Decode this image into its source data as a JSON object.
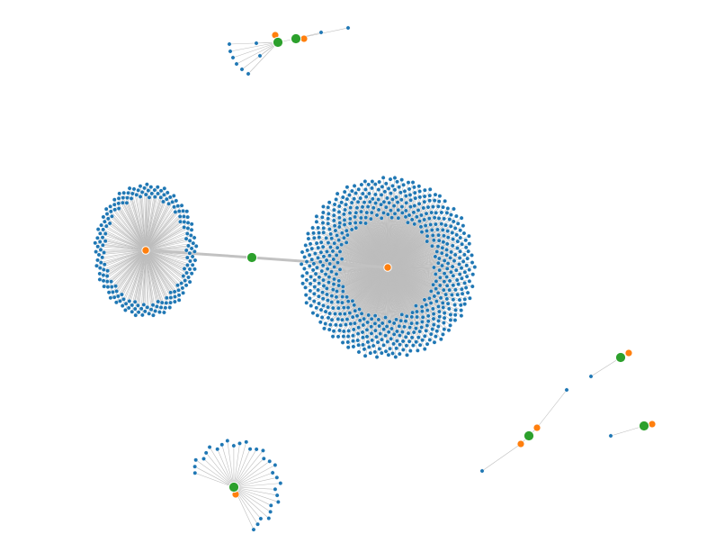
{
  "chart_data": {
    "type": "network",
    "title": "",
    "colors": {
      "leaf": "#1f77b4",
      "hub": "#ff7f0e",
      "bridge": "#2ca02c",
      "edge": "#bdbdbd"
    },
    "components": [
      {
        "id": "large-star",
        "hub_count": 1,
        "leaf_count": 620,
        "bridge_count": 0
      },
      {
        "id": "medium-star",
        "hub_count": 1,
        "leaf_count": 190,
        "bridge_count": 0
      },
      {
        "id": "bridge-link",
        "connects": [
          "large-star",
          "medium-star"
        ],
        "bridge_count": 1
      },
      {
        "id": "top-group",
        "hub_count": 2,
        "leaf_count": 10,
        "bridge_count": 2
      },
      {
        "id": "bottom-fan",
        "hub_count": 1,
        "leaf_count": 30,
        "bridge_count": 1
      },
      {
        "id": "chain-group",
        "hub_count": 2,
        "leaf_count": 2,
        "bridge_count": 1
      },
      {
        "id": "pair-upper-right",
        "hub_count": 1,
        "leaf_count": 1,
        "bridge_count": 1
      },
      {
        "id": "pair-lower-right",
        "hub_count": 1,
        "leaf_count": 1,
        "bridge_count": 1
      }
    ]
  }
}
